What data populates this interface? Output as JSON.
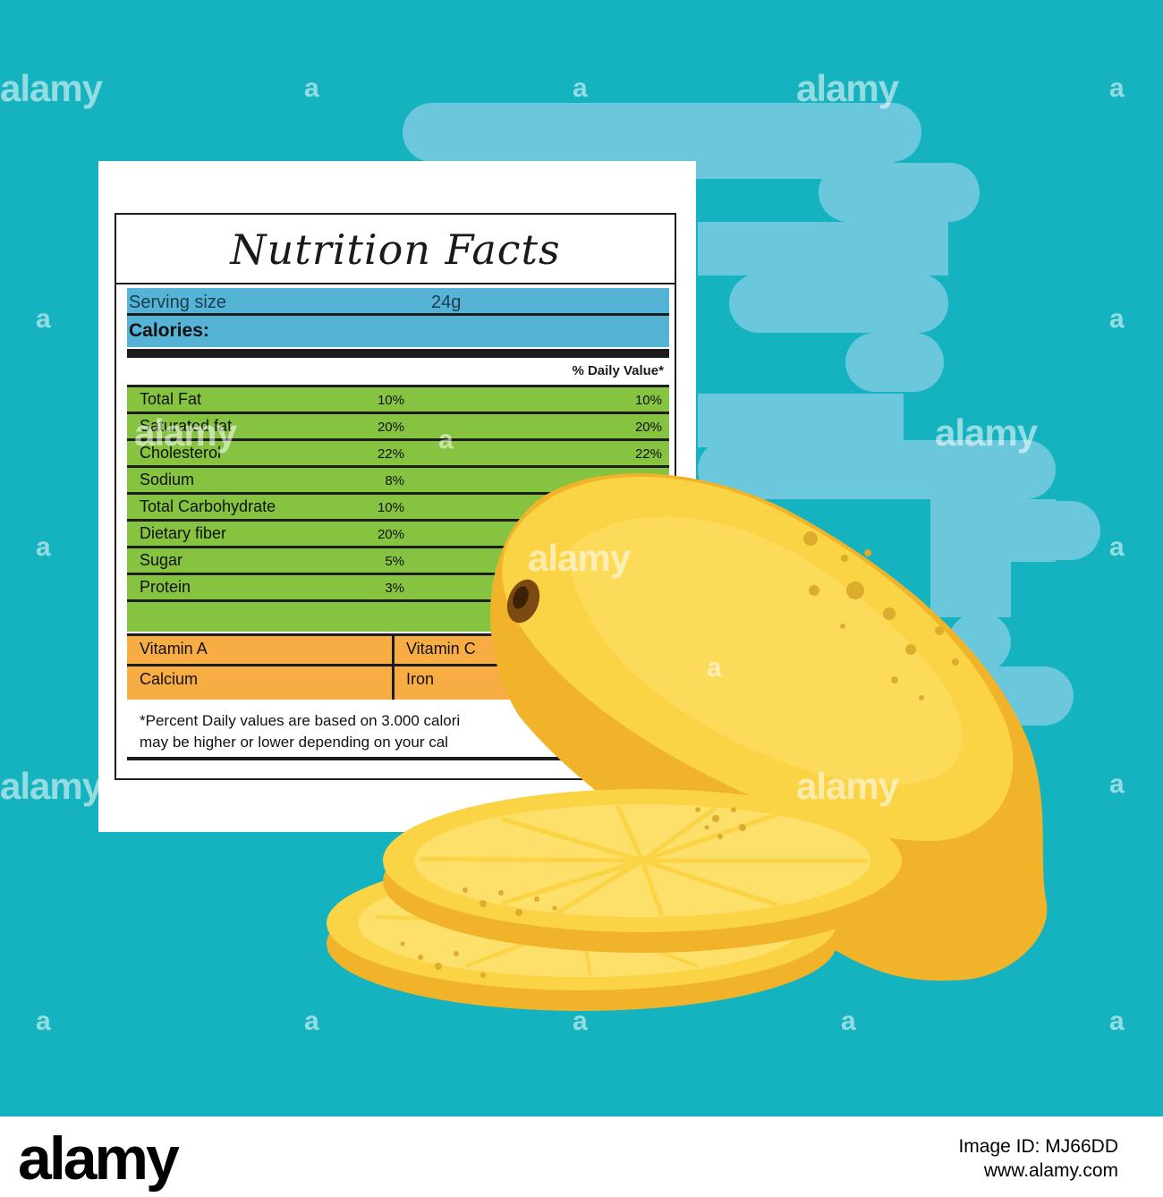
{
  "colors": {
    "background": "#15b2bf",
    "cloud": "#6bc7dc",
    "blue_band": "#55b3d6",
    "green_band": "#85c341",
    "orange_band": "#f7ad44",
    "lemon": "#fbd445",
    "lemon_shadow": "#f1b329"
  },
  "label": {
    "title": "Nutrition Facts",
    "serving_size_label": "Serving size",
    "serving_size_value": "24g",
    "calories_label": "Calories:",
    "daily_value_header": "% Daily Value*",
    "nutrients": [
      {
        "name": "Total Fat",
        "percent": "10%",
        "daily_value": "10%"
      },
      {
        "name": "Saturated fat",
        "percent": "20%",
        "daily_value": "20%"
      },
      {
        "name": "Cholesterol",
        "percent": "22%",
        "daily_value": "22%"
      },
      {
        "name": "Sodium",
        "percent": "8%",
        "daily_value": ""
      },
      {
        "name": "Total Carbohydrate",
        "percent": "10%",
        "daily_value": ""
      },
      {
        "name": "Dietary fiber",
        "percent": "20%",
        "daily_value": ""
      },
      {
        "name": "Sugar",
        "percent": "5%",
        "daily_value": ""
      },
      {
        "name": "Protein",
        "percent": "3%",
        "daily_value": ""
      }
    ],
    "vitamin_a": "Vitamin A",
    "vitamin_c": "Vitamin C",
    "calcium": "Calcium",
    "iron": "Iron",
    "footnote_line1": "*Percent Daily values are based on 3.000 calori",
    "footnote_line2": "may be higher or lower depending on your cal"
  },
  "watermark": {
    "word": "alamy",
    "letter": "a"
  },
  "footer": {
    "logo": "alamy",
    "image_id": "Image ID: MJ66DD",
    "site": "www.alamy.com"
  }
}
